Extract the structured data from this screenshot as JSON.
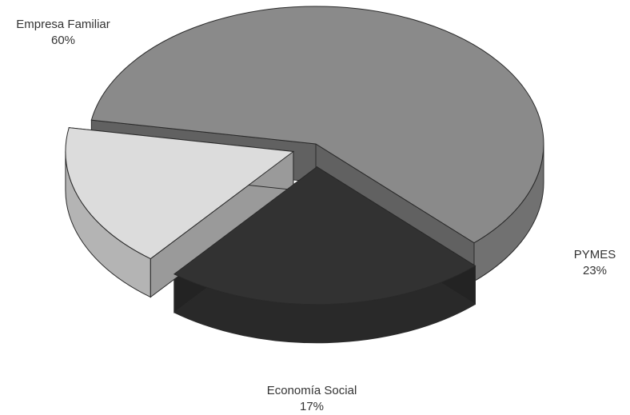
{
  "chart_data": {
    "type": "pie",
    "style": "3d-exploded",
    "categories": [
      "Empresa Familiar",
      "PYMES",
      "Economía Social"
    ],
    "values": [
      60,
      23,
      17
    ],
    "value_labels": [
      "60%",
      "23%",
      "17%"
    ],
    "colors": [
      "#8a8a8a",
      "#323232",
      "#dcdcdc"
    ],
    "legend": "none"
  }
}
